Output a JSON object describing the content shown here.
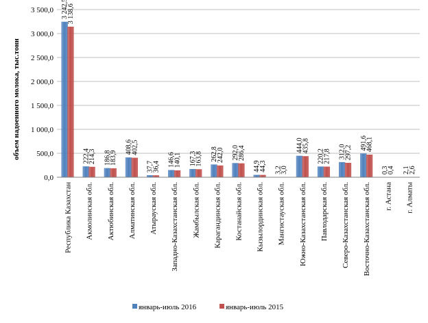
{
  "chart_data": {
    "type": "bar",
    "title": "",
    "xlabel": "",
    "ylabel": "объем надоенного молока, тыс.тонн",
    "ylim": [
      0,
      3500
    ],
    "yticks": [
      "0,0",
      "500,0",
      "1 000,0",
      "1 500,0",
      "2 000,0",
      "2 500,0",
      "3 000,0",
      "3 500,0"
    ],
    "ytick_values": [
      0,
      500,
      1000,
      1500,
      2000,
      2500,
      3000,
      3500
    ],
    "grid": true,
    "legend_position": "bottom",
    "categories": [
      "Республика Казахстан",
      "Акмолинская обл.",
      "Актюбинская обл.",
      "Алматинская обл.",
      "Атырауская обл.",
      "Западно-Казахстанская обл.",
      "Жамбылская обл.",
      "Карагандинская обл.",
      "Костанайская обл.",
      "Кызылординская обл.",
      "Мангистауская обл.",
      "Южно-Казахстанская обл.",
      "Павлодарская обл.",
      "Северо-Казахстанская обл.",
      "Восточно-Казахстанская обл.",
      "г. Астана",
      "г. Алматы"
    ],
    "series": [
      {
        "name": "январь-июль 2016",
        "color": "#4f81bd",
        "values": [
          3242.5,
          222.4,
          186.8,
          408.6,
          37.7,
          146.6,
          167.3,
          262.8,
          292.0,
          44.9,
          3.2,
          444.0,
          220.2,
          312.0,
          491.6,
          0.3,
          2.1
        ],
        "labels": [
          "3 242,5",
          "222,4",
          "186,8",
          "408,6",
          "37,7",
          "146,6",
          "167,3",
          "262,8",
          "292,0",
          "44,9",
          "3,2",
          "444,0",
          "220,2",
          "312,0",
          "491,6",
          "0,3",
          "2,1"
        ]
      },
      {
        "name": "январь-июль 2015",
        "color": "#c0504d",
        "values": [
          3138.6,
          214.3,
          183.9,
          402.5,
          36.4,
          140.1,
          163.8,
          242.0,
          286.4,
          44.3,
          3.0,
          435.8,
          217.8,
          297.2,
          468.1,
          0.4,
          2.6
        ],
        "labels": [
          "3 138,6",
          "214,3",
          "183,9",
          "402,5",
          "36,4",
          "140,1",
          "163,8",
          "242,0",
          "286,4",
          "44,3",
          "3,0",
          "435,8",
          "217,8",
          "297,2",
          "468,1",
          "0,4",
          "2,6"
        ]
      }
    ]
  }
}
